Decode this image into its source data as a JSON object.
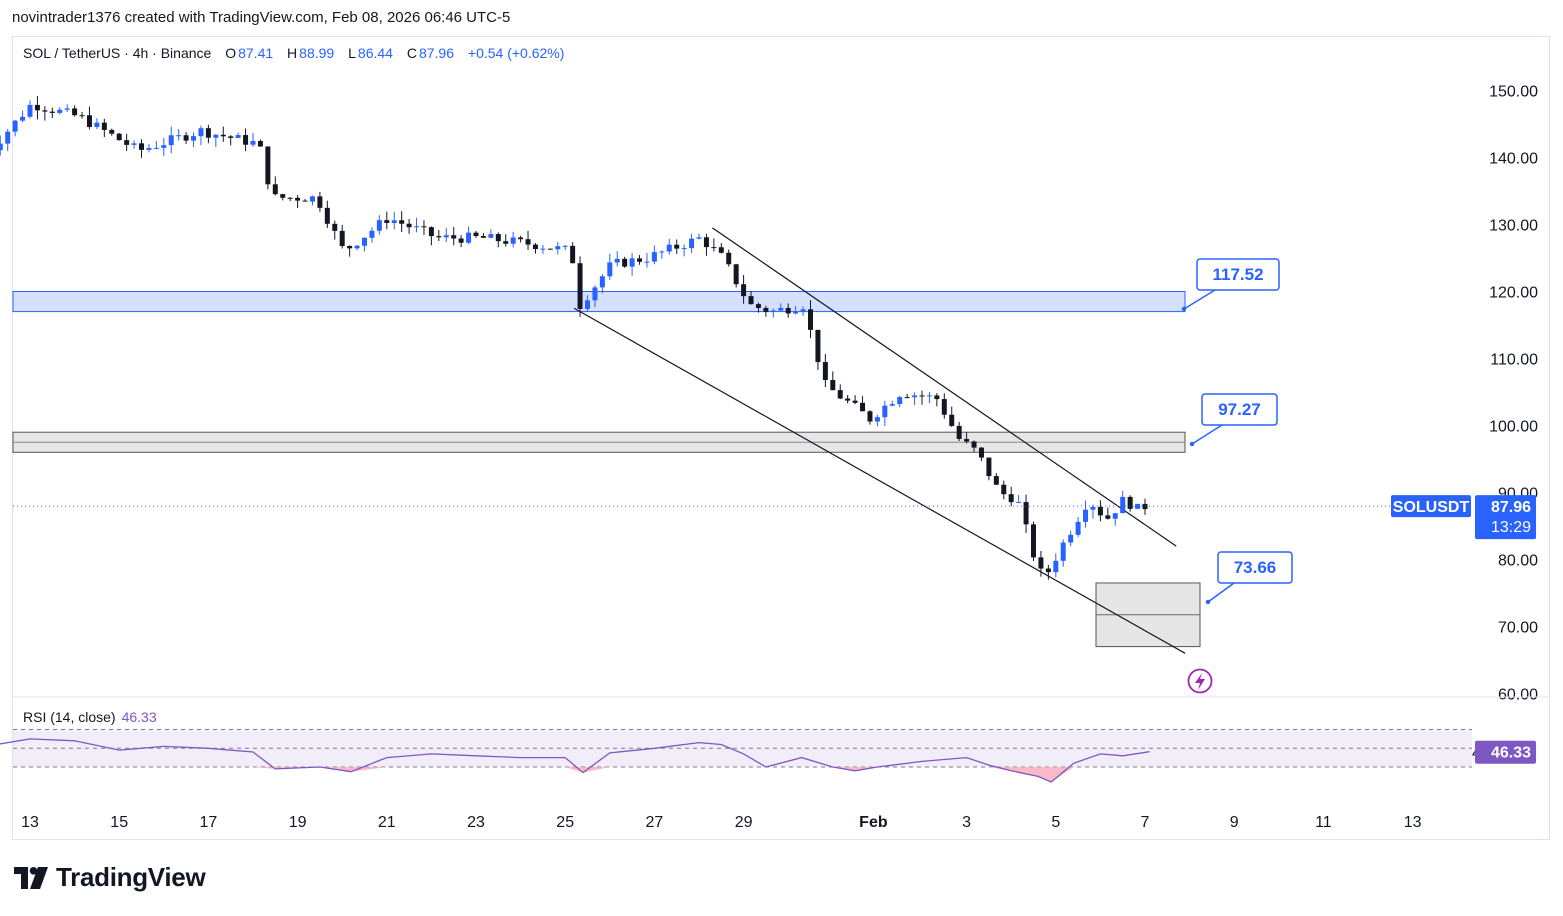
{
  "header": {
    "text": "novintrader1376 created with TradingView.com, Feb 08, 2026 06:46 UTC-5"
  },
  "legend": {
    "symbol": "SOL / TetherUS · 4h · Binance",
    "open_label": "O",
    "open": "87.41",
    "high_label": "H",
    "high": "88.99",
    "low_label": "L",
    "low": "86.44",
    "close_label": "C",
    "close": "87.96",
    "change": "+0.54 (+0.62%)"
  },
  "rsi_legend": {
    "label": "RSI (14, close)",
    "value": "46.33"
  },
  "brand": {
    "name": "TradingView"
  },
  "colors": {
    "up": "#2962ff",
    "down": "#131722",
    "accent": "#2962ff",
    "rsi_line": "#7e57c2",
    "rsi_band": "#ede7f6",
    "rsi_oversold_fill": "#f7a8b8",
    "zone_blue": "#d0dcff",
    "zone_gray": "#dddddd"
  },
  "chart_data": {
    "type": "candlestick",
    "symbol": "SOLUSDT",
    "interval": "4h",
    "price_axis": {
      "ticks": [
        60,
        70,
        80,
        90,
        100,
        110,
        120,
        130,
        140,
        150
      ],
      "range": [
        58,
        156
      ]
    },
    "time_axis": {
      "ticks": [
        "13",
        "15",
        "17",
        "19",
        "21",
        "23",
        "25",
        "27",
        "29",
        "Feb",
        "3",
        "5",
        "7",
        "9",
        "11",
        "13"
      ]
    },
    "last_price": {
      "symbol": "SOLUSDT",
      "value": "87.96",
      "countdown": "13:29"
    },
    "price_labels": [
      {
        "text": "117.52",
        "price": 117.52
      },
      {
        "text": "97.27",
        "price": 97.27
      },
      {
        "text": "73.66",
        "price": 73.66
      }
    ],
    "zones": [
      {
        "kind": "resistance",
        "price_top": 120.0,
        "price_bottom": 117.0,
        "color": "blue"
      },
      {
        "kind": "support",
        "price_top": 99.0,
        "price_bottom": 96.0,
        "color": "gray"
      },
      {
        "kind": "target",
        "price_top": 76.5,
        "price_bottom": 67.0,
        "color": "gray"
      }
    ],
    "channel_lines": [
      {
        "from": {
          "day": 28.3,
          "price": 129.5
        },
        "to": {
          "day": 38.7,
          "price": 82.0
        }
      },
      {
        "from": {
          "day": 25.2,
          "price": 117.5
        },
        "to": {
          "day": 38.9,
          "price": 66.0
        }
      }
    ],
    "ohlc_key_points": [
      {
        "day": 12.0,
        "price": 139
      },
      {
        "day": 13.2,
        "price": 148
      },
      {
        "day": 14.3,
        "price": 146
      },
      {
        "day": 15.6,
        "price": 141
      },
      {
        "day": 17.0,
        "price": 144
      },
      {
        "day": 18.3,
        "price": 142
      },
      {
        "day": 18.6,
        "price": 134
      },
      {
        "day": 19.6,
        "price": 134
      },
      {
        "day": 20.2,
        "price": 126
      },
      {
        "day": 21.2,
        "price": 131
      },
      {
        "day": 22.3,
        "price": 128
      },
      {
        "day": 23.3,
        "price": 128
      },
      {
        "day": 24.5,
        "price": 127
      },
      {
        "day": 25.3,
        "price": 126
      },
      {
        "day": 25.5,
        "price": 118
      },
      {
        "day": 26.2,
        "price": 124
      },
      {
        "day": 27.0,
        "price": 125
      },
      {
        "day": 28.2,
        "price": 128
      },
      {
        "day": 28.7,
        "price": 125
      },
      {
        "day": 29.3,
        "price": 118
      },
      {
        "day": 29.8,
        "price": 117
      },
      {
        "day": 30.5,
        "price": 118
      },
      {
        "day": 31.0,
        "price": 106
      },
      {
        "day": 31.4,
        "price": 104
      },
      {
        "day": 32.0,
        "price": 101
      },
      {
        "day": 32.7,
        "price": 105
      },
      {
        "day": 33.5,
        "price": 104
      },
      {
        "day": 34.0,
        "price": 98
      },
      {
        "day": 34.4,
        "price": 96
      },
      {
        "day": 34.9,
        "price": 90
      },
      {
        "day": 35.3,
        "price": 89
      },
      {
        "day": 35.7,
        "price": 80
      },
      {
        "day": 35.9,
        "price": 77
      },
      {
        "day": 36.3,
        "price": 82
      },
      {
        "day": 36.9,
        "price": 89
      },
      {
        "day": 37.3,
        "price": 86
      },
      {
        "day": 37.7,
        "price": 89
      },
      {
        "day": 38.0,
        "price": 87.5
      },
      {
        "day": 38.1,
        "price": 87.96
      }
    ],
    "rsi": {
      "period": 14,
      "current": 46.33,
      "upper_band": 70,
      "mid": 50,
      "lower_band": 30,
      "series_points": [
        {
          "day": 12.0,
          "v": 52
        },
        {
          "day": 13.0,
          "v": 60
        },
        {
          "day": 14.0,
          "v": 58
        },
        {
          "day": 15.0,
          "v": 48
        },
        {
          "day": 16.0,
          "v": 52
        },
        {
          "day": 17.0,
          "v": 50
        },
        {
          "day": 18.0,
          "v": 46
        },
        {
          "day": 18.5,
          "v": 28
        },
        {
          "day": 19.5,
          "v": 30
        },
        {
          "day": 20.2,
          "v": 25
        },
        {
          "day": 21.0,
          "v": 40
        },
        {
          "day": 22.0,
          "v": 44
        },
        {
          "day": 23.0,
          "v": 42
        },
        {
          "day": 24.0,
          "v": 40
        },
        {
          "day": 25.0,
          "v": 40
        },
        {
          "day": 25.4,
          "v": 24
        },
        {
          "day": 26.0,
          "v": 45
        },
        {
          "day": 27.0,
          "v": 50
        },
        {
          "day": 28.0,
          "v": 56
        },
        {
          "day": 28.5,
          "v": 54
        },
        {
          "day": 29.0,
          "v": 44
        },
        {
          "day": 29.5,
          "v": 30
        },
        {
          "day": 30.3,
          "v": 40
        },
        {
          "day": 31.0,
          "v": 30
        },
        {
          "day": 31.5,
          "v": 26
        },
        {
          "day": 32.0,
          "v": 30
        },
        {
          "day": 33.0,
          "v": 36
        },
        {
          "day": 34.0,
          "v": 40
        },
        {
          "day": 34.5,
          "v": 32
        },
        {
          "day": 35.0,
          "v": 26
        },
        {
          "day": 35.6,
          "v": 20
        },
        {
          "day": 35.9,
          "v": 14
        },
        {
          "day": 36.4,
          "v": 34
        },
        {
          "day": 37.0,
          "v": 44
        },
        {
          "day": 37.5,
          "v": 42
        },
        {
          "day": 38.1,
          "v": 46.33
        }
      ]
    }
  }
}
